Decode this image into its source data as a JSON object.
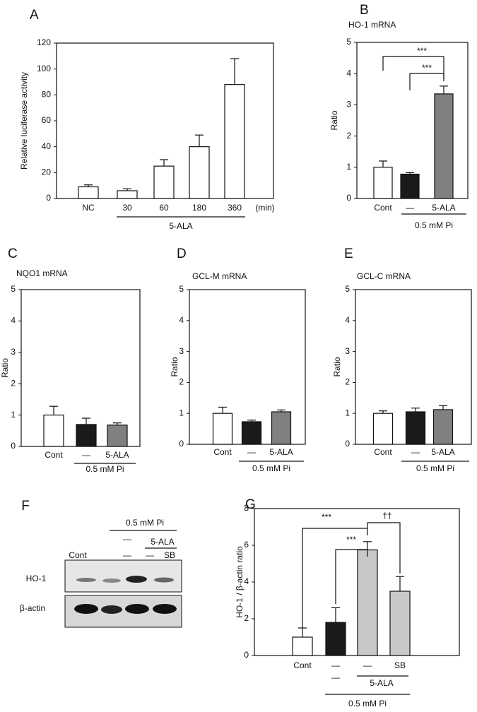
{
  "chart_data": [
    {
      "type": "bar",
      "panel": "A",
      "ylabel": "Relative luciferase activity",
      "categories": [
        "NC",
        "30",
        "60",
        "180",
        "360"
      ],
      "x_unit": "(min)",
      "group_label": "5-ALA",
      "values": [
        9,
        6,
        25,
        40,
        88
      ],
      "errors": [
        1.5,
        1.5,
        5,
        9,
        20
      ],
      "colors": [
        "#ffffff",
        "#ffffff",
        "#ffffff",
        "#ffffff",
        "#ffffff"
      ],
      "ylim": [
        0,
        120
      ],
      "yticks": [
        0,
        20,
        40,
        60,
        80,
        100,
        120
      ]
    },
    {
      "type": "bar",
      "panel": "B",
      "title": "HO-1 mRNA",
      "ylabel": "Ratio",
      "categories": [
        "Cont",
        "—",
        "5-ALA"
      ],
      "group_label": "0.5 mM Pi",
      "values": [
        1.0,
        0.78,
        3.35
      ],
      "errors": [
        0.2,
        0.05,
        0.25
      ],
      "colors": [
        "#ffffff",
        "#1a1a1a",
        "#808080"
      ],
      "ylim": [
        0,
        5
      ],
      "yticks": [
        0,
        1,
        2,
        3,
        4,
        5
      ],
      "annotations": [
        "***",
        "***"
      ]
    },
    {
      "type": "bar",
      "panel": "C",
      "title": "NQO1 mRNA",
      "ylabel": "Ratio",
      "categories": [
        "Cont",
        "—",
        "5-ALA"
      ],
      "group_label": "0.5 mM Pi",
      "values": [
        1.0,
        0.7,
        0.68
      ],
      "errors": [
        0.28,
        0.2,
        0.07
      ],
      "colors": [
        "#ffffff",
        "#1a1a1a",
        "#808080"
      ],
      "ylim": [
        0,
        5
      ],
      "yticks": [
        0,
        1,
        2,
        3,
        4,
        5
      ]
    },
    {
      "type": "bar",
      "panel": "D",
      "title": "GCL-M mRNA",
      "ylabel": "Ratio",
      "categories": [
        "Cont",
        "—",
        "5-ALA"
      ],
      "group_label": "0.5 mM Pi",
      "values": [
        1.0,
        0.73,
        1.05
      ],
      "errors": [
        0.2,
        0.05,
        0.06
      ],
      "colors": [
        "#ffffff",
        "#1a1a1a",
        "#808080"
      ],
      "ylim": [
        0,
        5
      ],
      "yticks": [
        0,
        1,
        2,
        3,
        4,
        5
      ]
    },
    {
      "type": "bar",
      "panel": "E",
      "title": "GCL-C mRNA",
      "ylabel": "Ratio",
      "categories": [
        "Cont",
        "—",
        "5-ALA"
      ],
      "group_label": "0.5 mM Pi",
      "values": [
        1.0,
        1.05,
        1.12
      ],
      "errors": [
        0.08,
        0.12,
        0.13
      ],
      "colors": [
        "#ffffff",
        "#1a1a1a",
        "#808080"
      ],
      "ylim": [
        0,
        5
      ],
      "yticks": [
        0,
        1,
        2,
        3,
        4,
        5
      ]
    },
    {
      "type": "bar",
      "panel": "G",
      "ylabel": "HO-1 / β-actin ratio",
      "categories": [
        "Cont",
        "—",
        "—",
        "SB"
      ],
      "sublabels": [
        "—",
        "5-ALA"
      ],
      "group_label": "0.5 mM Pi",
      "values": [
        1.0,
        1.8,
        5.75,
        3.5
      ],
      "errors": [
        0.5,
        0.8,
        0.45,
        0.8
      ],
      "colors": [
        "#ffffff",
        "#1a1a1a",
        "#c8c8c8",
        "#c8c8c8"
      ],
      "ylim": [
        0,
        8
      ],
      "yticks": [
        0,
        2,
        4,
        6,
        8
      ],
      "annotations": [
        "***",
        "***",
        "††"
      ]
    }
  ],
  "blot": {
    "panel": "F",
    "group_label": "0.5 mM Pi",
    "sublabels": [
      "—",
      "5-ALA"
    ],
    "lanes": [
      "Cont",
      "—",
      "—",
      "SB"
    ],
    "rows": [
      "HO-1",
      "β-actin"
    ]
  }
}
